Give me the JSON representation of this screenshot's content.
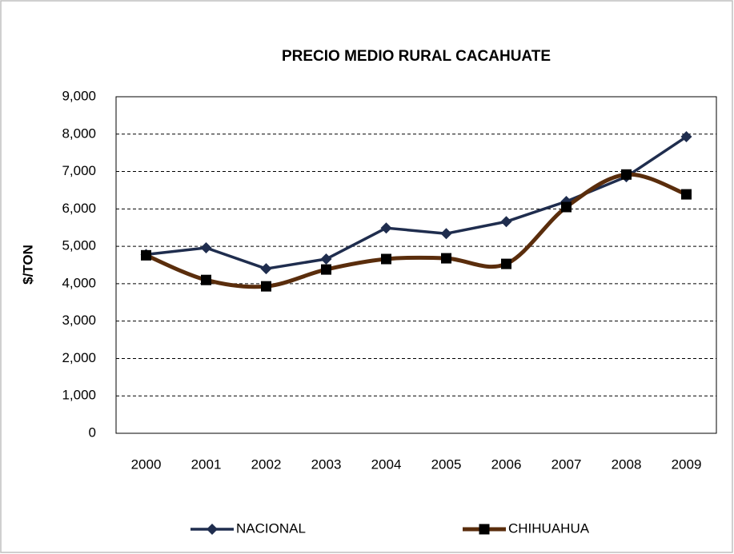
{
  "chart_data": {
    "type": "line",
    "title": "PRECIO MEDIO RURAL CACAHUATE",
    "y_label": "$/TON",
    "categories": [
      "2000",
      "2001",
      "2002",
      "2003",
      "2004",
      "2005",
      "2006",
      "2007",
      "2008",
      "2009"
    ],
    "series": [
      {
        "name": "NACIONAL",
        "color": "#1f2d4e",
        "marker": "diamond",
        "smooth": false,
        "values": [
          4780,
          4960,
          4400,
          4660,
          5490,
          5340,
          5660,
          6200,
          6860,
          7930
        ]
      },
      {
        "name": "CHIHUAHUA",
        "color": "#5a2d0c",
        "marker": "square",
        "smooth": true,
        "values": [
          4760,
          4100,
          3930,
          4380,
          4660,
          4680,
          4530,
          6050,
          6920,
          6390
        ]
      }
    ],
    "ylim": [
      0,
      9000
    ],
    "yticks": [
      0,
      {
        "value": 1000,
        "label": "1,000"
      },
      {
        "value": 2000,
        "label": "2,000"
      },
      {
        "value": 3000,
        "label": "3,000"
      },
      {
        "value": 4000,
        "label": "4,000"
      },
      {
        "value": 5000,
        "label": "5,000"
      },
      {
        "value": 6000,
        "label": "6,000"
      },
      {
        "value": 7000,
        "label": "7,000"
      },
      {
        "value": 8000,
        "label": "8,000"
      },
      {
        "value": 9000,
        "label": "9,000"
      }
    ],
    "grid": true,
    "legend": "bottom"
  }
}
